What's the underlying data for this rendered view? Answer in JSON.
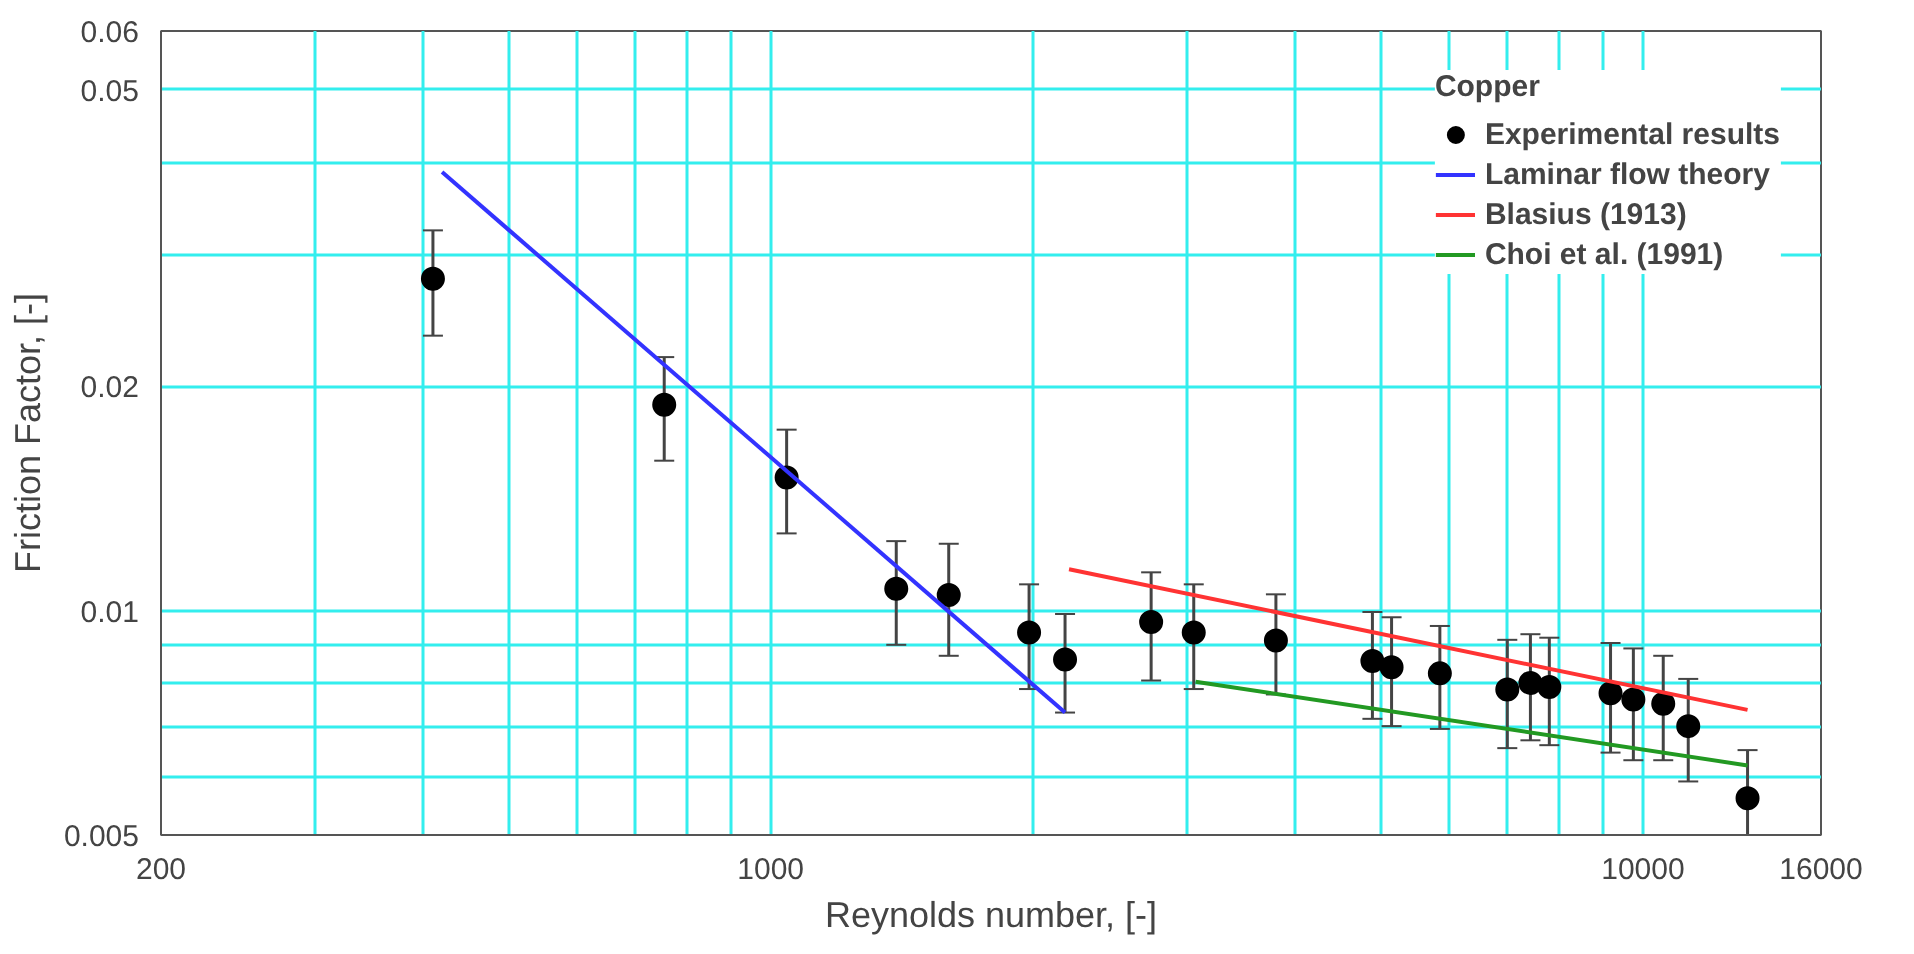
{
  "chart_data": {
    "type": "line",
    "xlabel": "Reynolds number, [-]",
    "ylabel": "Friction Factor, [-]",
    "legend_title": "Copper",
    "log": "xy",
    "grid": true,
    "legend": "top right",
    "xlim": [
      200,
      16000
    ],
    "ylim": [
      0.005,
      0.06
    ],
    "xticks": [
      200,
      {
        "value": 300,
        "label": null
      },
      {
        "value": 400,
        "label": null
      },
      {
        "value": 500,
        "label": null
      },
      {
        "value": 600,
        "label": null
      },
      {
        "value": 700,
        "label": null
      },
      {
        "value": 800,
        "label": null
      },
      {
        "value": 900,
        "label": null
      },
      1000,
      {
        "value": 2000,
        "label": null
      },
      {
        "value": 3000,
        "label": null
      },
      {
        "value": 4000,
        "label": null
      },
      {
        "value": 5000,
        "label": null
      },
      {
        "value": 6000,
        "label": null
      },
      {
        "value": 7000,
        "label": null
      },
      {
        "value": 8000,
        "label": null
      },
      {
        "value": 9000,
        "label": null
      },
      10000,
      16000
    ],
    "yticks": [
      0.005,
      {
        "value": 0.006,
        "label": null
      },
      {
        "value": 0.007,
        "label": null
      },
      {
        "value": 0.008,
        "label": null
      },
      {
        "value": 0.009,
        "label": null
      },
      0.01,
      0.02,
      {
        "value": 0.03,
        "label": null
      },
      {
        "value": 0.04,
        "label": null
      },
      0.05,
      0.06
    ],
    "series": [
      {
        "name": "Experimental results",
        "type": "scatter",
        "marker": "circle",
        "color": "#000000",
        "x": [
          410,
          755,
          1043,
          1393,
          1600,
          1978,
          2175,
          2730,
          3055,
          3795,
          4896,
          5150,
          5850,
          6990,
          7430,
          7810,
          9180,
          9750,
          10550,
          11270,
          13180
        ],
        "values": [
          0.0279,
          0.0189,
          0.0151,
          0.0107,
          0.0105,
          0.00935,
          0.0086,
          0.00966,
          0.00935,
          0.00912,
          0.00856,
          0.0084,
          0.00824,
          0.00784,
          0.008,
          0.0079,
          0.00775,
          0.0076,
          0.0075,
          0.007,
          0.0056
        ],
        "errors": [
          0.0045,
          0.003,
          0.0024,
          0.0017,
          0.0018,
          0.0015,
          0.0013,
          0.0016,
          0.0015,
          0.0014,
          0.0014,
          0.0014,
          0.0013,
          0.0013,
          0.0013,
          0.0013,
          0.0013,
          0.0013,
          0.0012,
          0.0011,
          [
            0.005,
            0.0065
          ]
        ]
      },
      {
        "name": "Laminar flow theory",
        "color": "#3333ff",
        "x": [
          420,
          2175
        ],
        "values": [
          0.0388,
          0.0073
        ]
      },
      {
        "name": "Blasius (1913)",
        "color": "#ff3333",
        "x": [
          2198,
          13180
        ],
        "values": [
          0.01137,
          0.00736
        ]
      },
      {
        "name": "Choi et al. (1991)",
        "color": "#229922",
        "x": [
          3070,
          13180
        ],
        "values": [
          0.00803,
          0.0062
        ]
      }
    ]
  }
}
